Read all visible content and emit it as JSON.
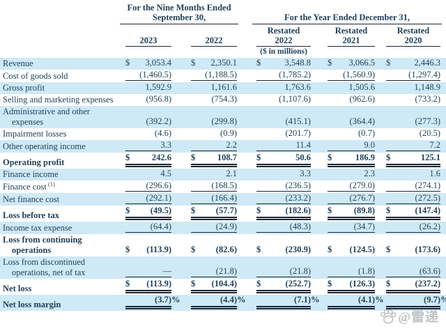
{
  "currency_symbol": "$",
  "header": {
    "nine_months_group_line1": "For the Nine Months Ended",
    "nine_months_group_line2": "September 30,",
    "year_group": "For the Year Ended December 31,",
    "unit_note": "($ in millions)",
    "columns": [
      {
        "top": "",
        "year": "2023"
      },
      {
        "top": "",
        "year": "2022"
      },
      {
        "top": "Restated",
        "year": "2022"
      },
      {
        "top": "Restated",
        "year": "2021"
      },
      {
        "top": "Restated",
        "year": "2020"
      }
    ]
  },
  "rows": [
    {
      "label": "Revenue",
      "bold": false,
      "shaded": true,
      "dollar": true,
      "percent": false,
      "rule": "none",
      "values": [
        "3,053.4",
        "2,350.1",
        "3,548.8",
        "3,066.5",
        "2,446.3"
      ]
    },
    {
      "label": "Cost of goods sold",
      "bold": false,
      "shaded": false,
      "dollar": false,
      "percent": false,
      "rule": "single",
      "values": [
        "(1,460.5)",
        "(1,188.5)",
        "(1,785.2)",
        "(1,560.9)",
        "(1,297.4)"
      ]
    },
    {
      "label": "Gross profit",
      "bold": false,
      "shaded": true,
      "dollar": false,
      "percent": false,
      "rule": "none",
      "values": [
        "1,592.9",
        "1,161.6",
        "1,763.6",
        "1,505.6",
        "1,148.9"
      ]
    },
    {
      "label": "Selling and marketing expenses",
      "bold": false,
      "shaded": false,
      "dollar": false,
      "percent": false,
      "rule": "none",
      "values": [
        "(956.8)",
        "(754.3)",
        "(1,107.6)",
        "(962.6)",
        "(733.2)"
      ]
    },
    {
      "label": "Administrative and other expenses",
      "bold": false,
      "shaded": true,
      "dollar": false,
      "percent": false,
      "rule": "none",
      "values": [
        "(392.2)",
        "(299.8)",
        "(415.1)",
        "(364.4)",
        "(277.3)"
      ]
    },
    {
      "label": "Impairment losses",
      "bold": false,
      "shaded": false,
      "dollar": false,
      "percent": false,
      "rule": "none",
      "values": [
        "(4.6)",
        "(0.9)",
        "(201.7)",
        "(0.7)",
        "(20.5)"
      ]
    },
    {
      "label": "Other operating income",
      "bold": false,
      "shaded": true,
      "dollar": false,
      "percent": false,
      "rule": "single",
      "values": [
        "3.3",
        "2.2",
        "11.4",
        "9.0",
        "7.2"
      ]
    },
    {
      "label": "Operating profit",
      "bold": true,
      "shaded": false,
      "dollar": true,
      "percent": false,
      "rule": "double",
      "values": [
        "242.6",
        "108.7",
        "50.6",
        "186.9",
        "125.1"
      ]
    },
    {
      "label": "Finance income",
      "bold": false,
      "shaded": true,
      "dollar": false,
      "percent": false,
      "rule": "none",
      "values": [
        "4.5",
        "2.1",
        "3.3",
        "2.3",
        "1.6"
      ]
    },
    {
      "label": "Finance cost",
      "sup": "(1)",
      "bold": false,
      "shaded": false,
      "dollar": false,
      "percent": false,
      "rule": "single",
      "values": [
        "(296.6)",
        "(168.5)",
        "(236.5)",
        "(279.0)",
        "(274.1)"
      ]
    },
    {
      "label": "Net finance cost",
      "bold": false,
      "shaded": true,
      "dollar": false,
      "percent": false,
      "rule": "single",
      "values": [
        "(292.1)",
        "(166.4)",
        "(233.2)",
        "(276.7)",
        "(272.5)"
      ]
    },
    {
      "label": "Loss before tax",
      "bold": true,
      "shaded": false,
      "dollar": true,
      "percent": false,
      "rule": "double",
      "values": [
        "(49.5)",
        "(57.7)",
        "(182.6)",
        "(89.8)",
        "(147.4)"
      ]
    },
    {
      "label": "Income tax expense",
      "bold": false,
      "shaded": true,
      "dollar": false,
      "percent": false,
      "rule": "single",
      "values": [
        "(64.4)",
        "(24.9)",
        "(48.3)",
        "(34.7)",
        "(26.2)"
      ]
    },
    {
      "label": "Loss from continuing operations",
      "bold": true,
      "shaded": false,
      "dollar": true,
      "percent": false,
      "rule": "none",
      "values": [
        "(113.9)",
        "(82.6)",
        "(230.9)",
        "(124.5)",
        "(173.6)"
      ]
    },
    {
      "label": "Loss from discontinued operations, net of tax",
      "bold": false,
      "shaded": true,
      "dollar": false,
      "percent": false,
      "rule": "single",
      "values": [
        "—",
        "(21.8)",
        "(21.8)",
        "(1.8)",
        "(63.6)"
      ]
    },
    {
      "label": "Net loss",
      "bold": true,
      "shaded": false,
      "dollar": true,
      "percent": false,
      "rule": "double",
      "values": [
        "(113.9)",
        "(104.4)",
        "(252.7)",
        "(126.3)",
        "(237.2)"
      ]
    },
    {
      "label": "Net loss margin",
      "bold": true,
      "shaded": true,
      "dollar": false,
      "percent": true,
      "rule": "double",
      "values": [
        "(3.7)",
        "(4.4)",
        "(7.1)",
        "(4.1)",
        "(9.7)"
      ]
    }
  ],
  "watermark": {
    "icon": "paw-icon",
    "text": "@雷递"
  },
  "colors": {
    "row_shade": "#cfe9f7",
    "text": "#1e3f58",
    "line": "#1b2433",
    "watermark": "#b9bcbe"
  }
}
